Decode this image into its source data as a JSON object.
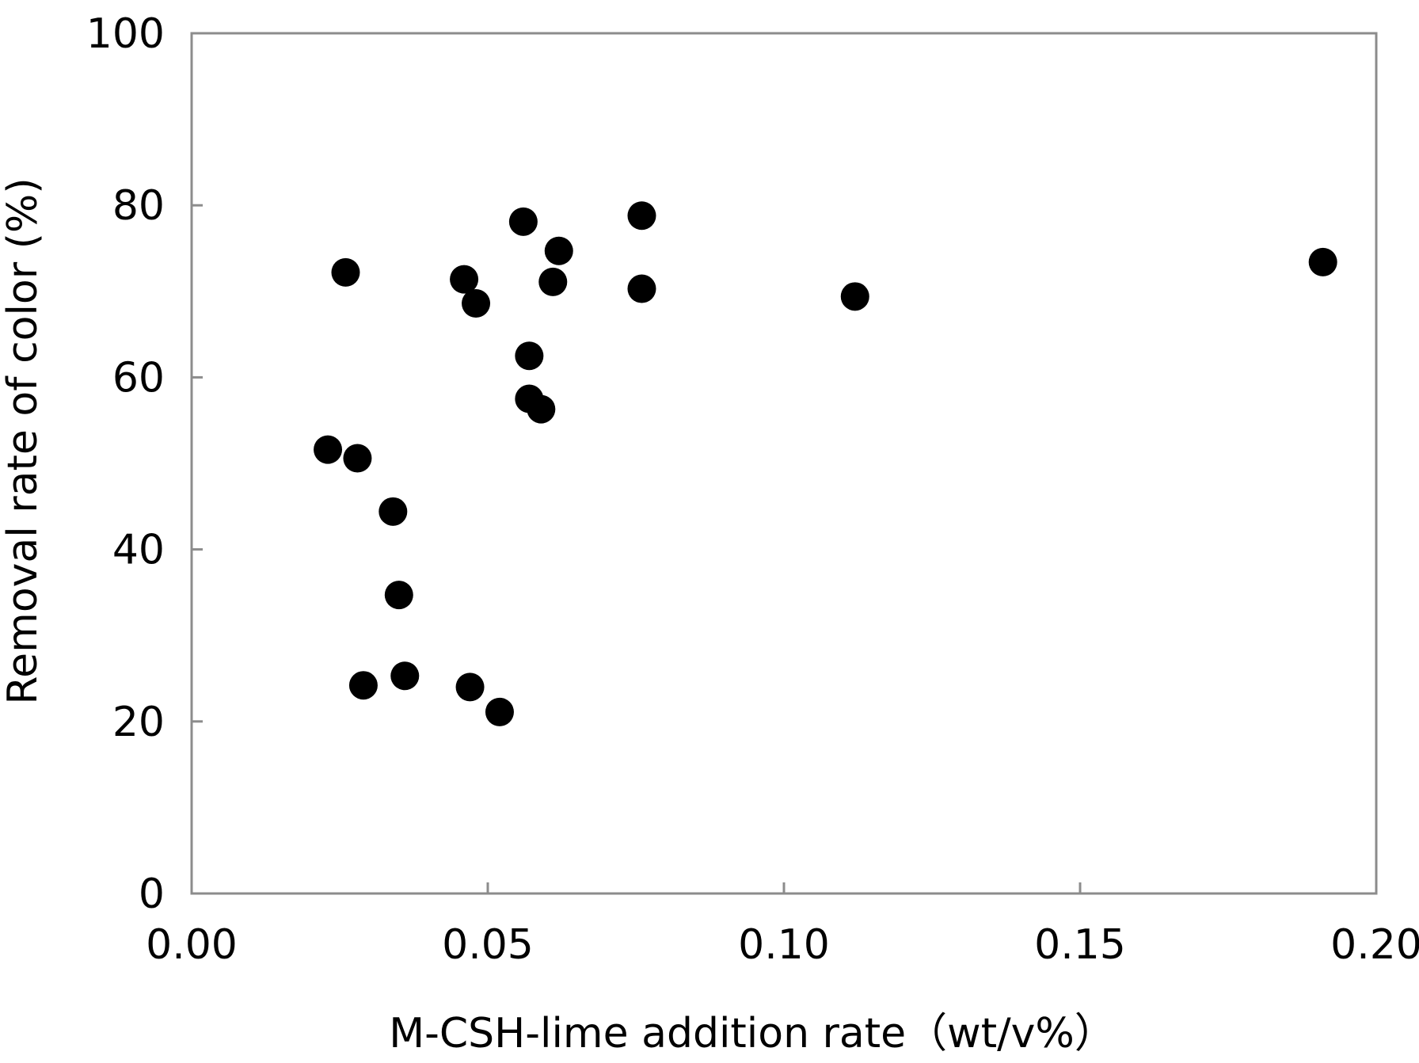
{
  "chart_data": {
    "type": "scatter",
    "title": "",
    "xlabel": "M-CSH-lime addition rate（wt/v%）",
    "ylabel": "Removal rate of color (%)",
    "xlim": [
      0,
      0.2
    ],
    "ylim": [
      0,
      100
    ],
    "x_ticks": [
      "0.00",
      "0.05",
      "0.10",
      "0.15",
      "0.20"
    ],
    "y_ticks": [
      "0",
      "20",
      "40",
      "60",
      "80",
      "100"
    ],
    "grid": false,
    "legend": "none",
    "marker_color": "#000000",
    "series": [
      {
        "points": [
          {
            "x": 0.023,
            "y": 51.6
          },
          {
            "x": 0.026,
            "y": 72.2
          },
          {
            "x": 0.028,
            "y": 50.6
          },
          {
            "x": 0.029,
            "y": 24.2
          },
          {
            "x": 0.034,
            "y": 44.4
          },
          {
            "x": 0.035,
            "y": 34.7
          },
          {
            "x": 0.036,
            "y": 25.3
          },
          {
            "x": 0.046,
            "y": 71.4
          },
          {
            "x": 0.047,
            "y": 24.0
          },
          {
            "x": 0.048,
            "y": 68.6
          },
          {
            "x": 0.052,
            "y": 21.1
          },
          {
            "x": 0.056,
            "y": 78.1
          },
          {
            "x": 0.057,
            "y": 62.5
          },
          {
            "x": 0.057,
            "y": 57.5
          },
          {
            "x": 0.059,
            "y": 56.3
          },
          {
            "x": 0.061,
            "y": 71.1
          },
          {
            "x": 0.062,
            "y": 74.7
          },
          {
            "x": 0.076,
            "y": 78.8
          },
          {
            "x": 0.076,
            "y": 70.3
          },
          {
            "x": 0.112,
            "y": 69.4
          },
          {
            "x": 0.191,
            "y": 73.4
          }
        ]
      }
    ]
  }
}
